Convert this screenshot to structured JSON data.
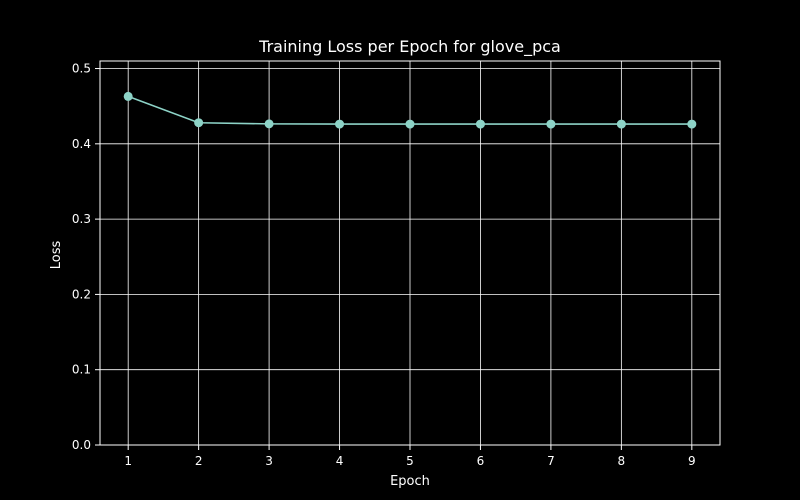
{
  "chart_data": {
    "type": "line",
    "title": "Training Loss per Epoch for glove_pca",
    "xlabel": "Epoch",
    "ylabel": "Loss",
    "x": [
      1,
      2,
      3,
      4,
      5,
      6,
      7,
      8,
      9
    ],
    "y": [
      0.463,
      0.428,
      0.4265,
      0.4262,
      0.4262,
      0.4262,
      0.4262,
      0.4262,
      0.4262
    ],
    "xticks": [
      "1",
      "2",
      "3",
      "4",
      "5",
      "6",
      "7",
      "8",
      "9"
    ],
    "yticks": [
      "0.0",
      "0.1",
      "0.2",
      "0.3",
      "0.4",
      "0.5"
    ],
    "xlim": [
      0.6,
      9.4
    ],
    "ylim": [
      0.0,
      0.51
    ],
    "grid": true,
    "colors": {
      "background": "#000000",
      "line": "#8dd3c7",
      "grid": "#ffffff",
      "axes": "#ffffff",
      "text": "#ffffff"
    }
  }
}
